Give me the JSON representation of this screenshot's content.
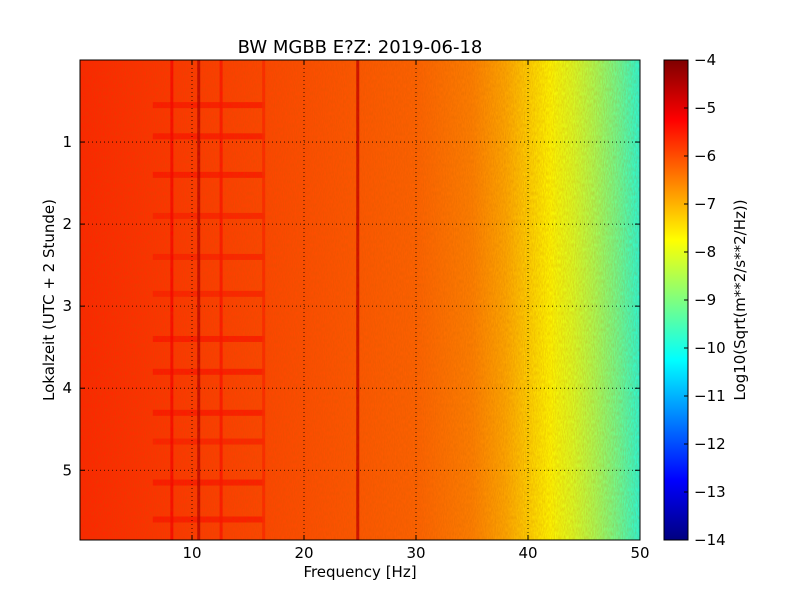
{
  "chart_data": {
    "type": "heatmap",
    "title": "BW MGBB E?Z: 2019-06-18",
    "xlabel": "Frequency [Hz]",
    "ylabel": "Lokalzeit (UTC + 2 Stunde)",
    "xlim": [
      0,
      50
    ],
    "ylim": [
      5.85,
      0.0
    ],
    "x_ticks": [
      10,
      20,
      30,
      40,
      50
    ],
    "x_tick_labels": [
      "10",
      "20",
      "30",
      "40",
      "50"
    ],
    "y_ticks": [
      1,
      2,
      3,
      4,
      5
    ],
    "y_tick_labels": [
      "1",
      "2",
      "3",
      "4",
      "5"
    ],
    "grid": true,
    "colorbar": {
      "label": "Log10(Sqrt(m**2/s**2/Hz))",
      "range": [
        -14,
        -4
      ],
      "ticks": [
        -4,
        -5,
        -6,
        -7,
        -8,
        -9,
        -10,
        -11,
        -12,
        -13,
        -14
      ],
      "tick_labels": [
        "−4",
        "−5",
        "−6",
        "−7",
        "−8",
        "−9",
        "−10",
        "−11",
        "−12",
        "−13",
        "−14"
      ],
      "colormap": "jet",
      "colormap_stops": [
        "#00007f",
        "#0000ff",
        "#007fff",
        "#00ffff",
        "#7fff7f",
        "#ffff00",
        "#ff7f00",
        "#ff0000",
        "#7f0000"
      ]
    },
    "frequency_profile": [
      {
        "freq": 0,
        "value": -5.6
      },
      {
        "freq": 5,
        "value": -5.7
      },
      {
        "freq": 10,
        "value": -5.8
      },
      {
        "freq": 20,
        "value": -6.0
      },
      {
        "freq": 30,
        "value": -6.2
      },
      {
        "freq": 35,
        "value": -6.5
      },
      {
        "freq": 38,
        "value": -6.9
      },
      {
        "freq": 40,
        "value": -7.3
      },
      {
        "freq": 42,
        "value": -7.7
      },
      {
        "freq": 44,
        "value": -8.1
      },
      {
        "freq": 46,
        "value": -8.6
      },
      {
        "freq": 48,
        "value": -9.2
      },
      {
        "freq": 50,
        "value": -9.9
      }
    ],
    "spectral_lines": [
      {
        "freq": 8.2,
        "value": -5.2
      },
      {
        "freq": 10.6,
        "value": -4.6
      },
      {
        "freq": 12.6,
        "value": -5.4
      },
      {
        "freq": 16.4,
        "value": -5.6
      },
      {
        "freq": 24.8,
        "value": -4.7
      }
    ],
    "time_bands": [
      {
        "time": 0.55,
        "value": -5.4
      },
      {
        "time": 0.93,
        "value": -5.4
      },
      {
        "time": 1.4,
        "value": -5.4
      },
      {
        "time": 1.9,
        "value": -5.5
      },
      {
        "time": 2.4,
        "value": -5.5
      },
      {
        "time": 2.85,
        "value": -5.5
      },
      {
        "time": 3.4,
        "value": -5.4
      },
      {
        "time": 3.8,
        "value": -5.4
      },
      {
        "time": 4.3,
        "value": -5.4
      },
      {
        "time": 4.65,
        "value": -5.5
      },
      {
        "time": 5.15,
        "value": -5.4
      },
      {
        "time": 5.6,
        "value": -5.4
      }
    ]
  }
}
